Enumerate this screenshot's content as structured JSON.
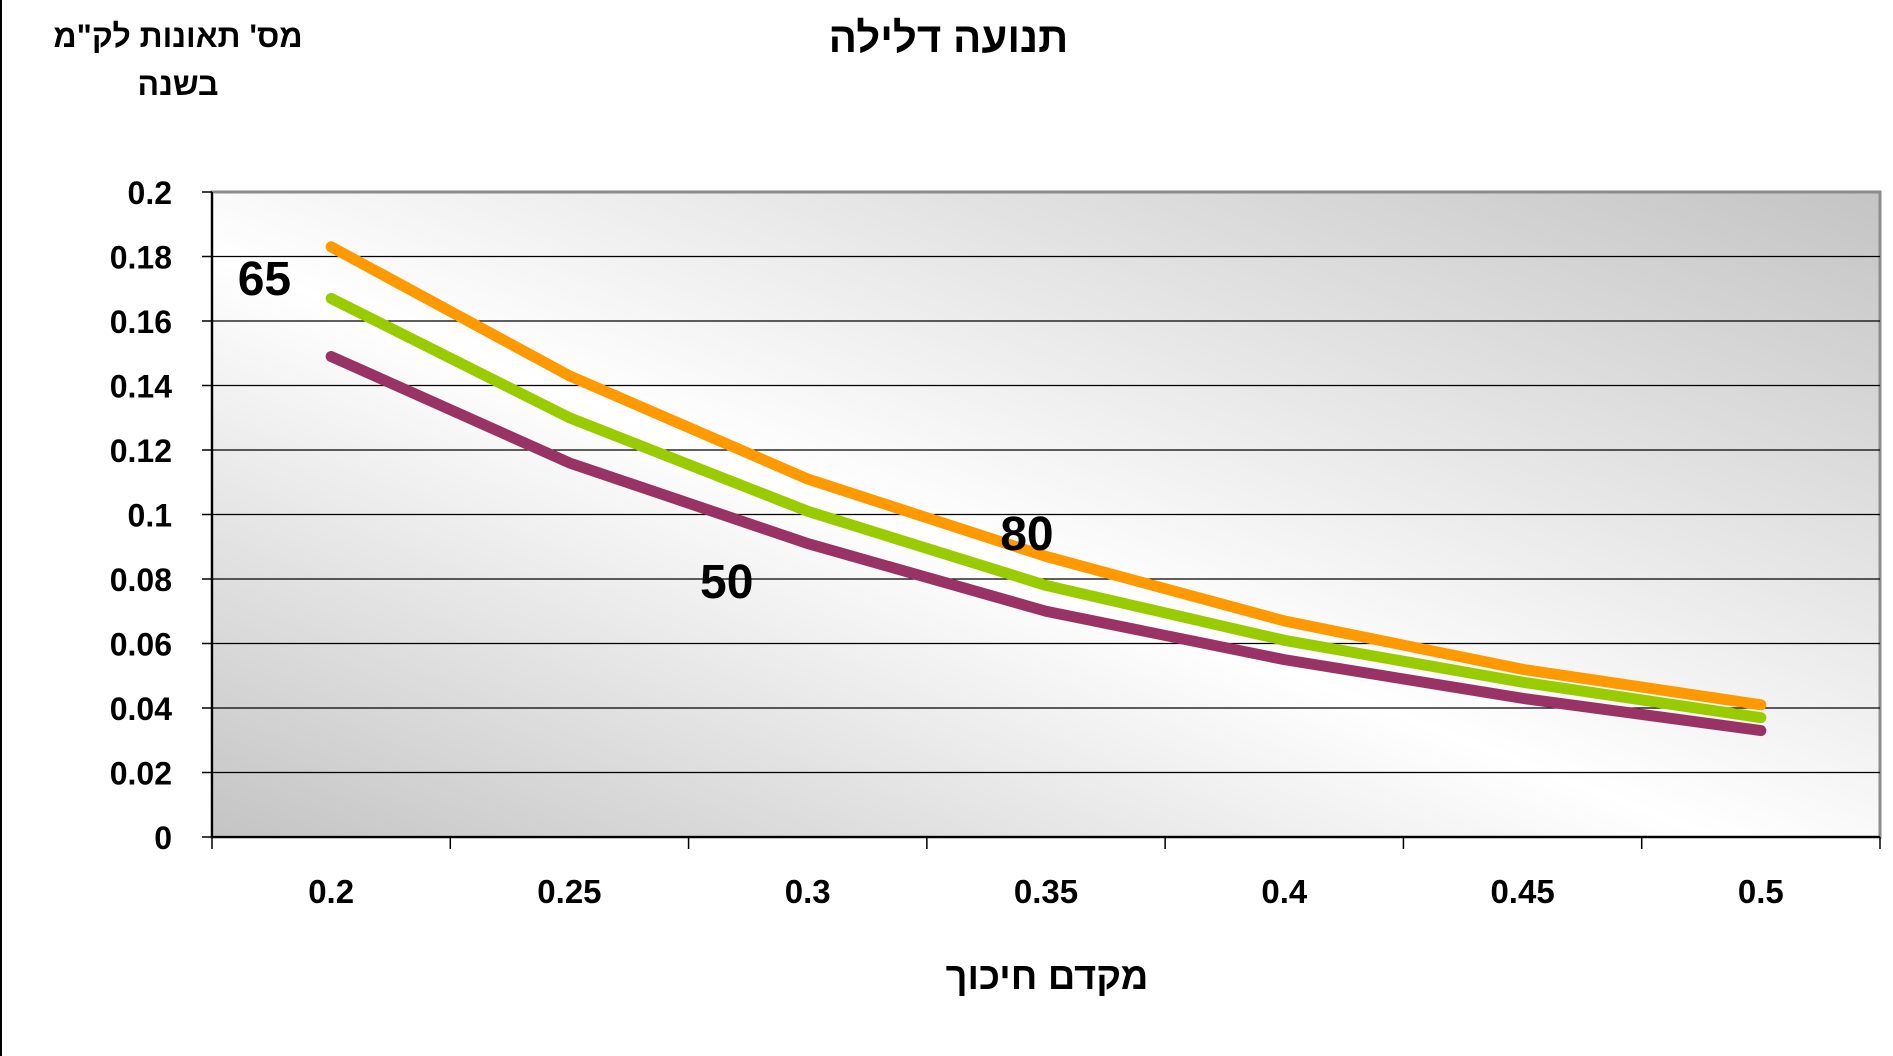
{
  "chart_data": {
    "type": "line",
    "title": "תנועה דלילה",
    "ylabel_lines": [
      "מס' תאונות לק\"מ",
      "בשנה"
    ],
    "xlabel": "מקדם חיכוך",
    "x": [
      0.2,
      0.25,
      0.3,
      0.35,
      0.4,
      0.45,
      0.5
    ],
    "x_tick_labels": [
      "0.2",
      "0.25",
      "0.3",
      "0.35",
      "0.4",
      "0.45",
      "0.5"
    ],
    "ylim": [
      0,
      0.2
    ],
    "y_ticks": [
      0,
      0.02,
      0.04,
      0.06,
      0.08,
      0.1,
      0.12,
      0.14,
      0.16,
      0.18,
      0.2
    ],
    "y_tick_labels": [
      "0",
      "0.02",
      "0.04",
      "0.06",
      "0.08",
      "0.1",
      "0.12",
      "0.14",
      "0.16",
      "0.18",
      "0.2"
    ],
    "grid": true,
    "legend": "none",
    "series": [
      {
        "label": "80",
        "color": "#ff9900",
        "values": [
          0.183,
          0.143,
          0.111,
          0.087,
          0.067,
          0.052,
          0.041
        ]
      },
      {
        "label": "65",
        "color": "#99cc00",
        "values": [
          0.167,
          0.13,
          0.101,
          0.078,
          0.061,
          0.048,
          0.037
        ]
      },
      {
        "label": "50",
        "color": "#993366",
        "values": [
          0.149,
          0.116,
          0.091,
          0.07,
          0.055,
          0.043,
          0.033
        ]
      }
    ],
    "series_labels": [
      {
        "text": "65",
        "x": 0.186,
        "y": 0.173
      },
      {
        "text": "80",
        "x": 0.346,
        "y": 0.094
      },
      {
        "text": "50",
        "x": 0.283,
        "y": 0.079
      }
    ]
  }
}
